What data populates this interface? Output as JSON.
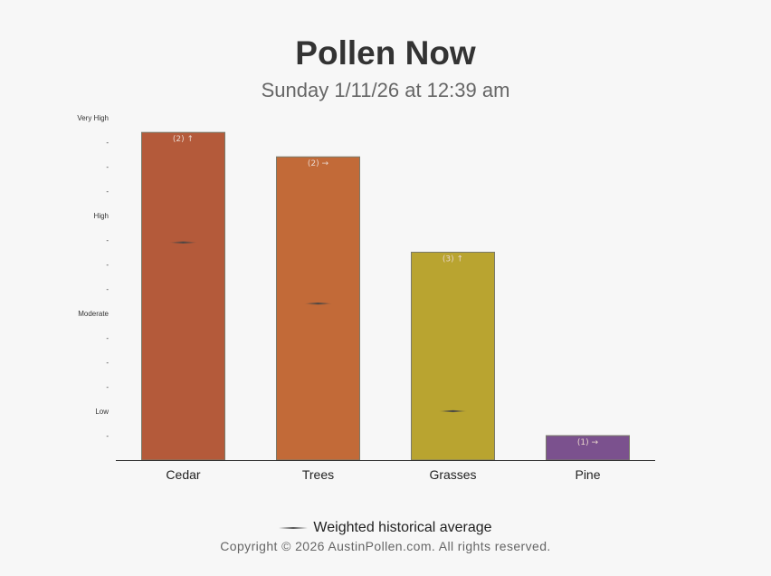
{
  "header": {
    "title": "Pollen Now",
    "subtitle": "Sunday 1/11/26 at 12:39 am"
  },
  "legend": {
    "label": "Weighted historical average"
  },
  "footer": {
    "copyright": "Copyright © 2026 AustinPollen.com.  All rights reserved."
  },
  "colors": {
    "cedar": "#b45a3a",
    "trees": "#c26a38",
    "grasses": "#b9a430",
    "pine": "#7b518e",
    "axis": "#333333",
    "avg_line": "#555555"
  },
  "chart_data": {
    "type": "bar",
    "title": "Pollen Now",
    "subtitle": "Sunday 1/11/26 at 12:39 am",
    "categories": [
      "Cedar",
      "Trees",
      "Grasses",
      "Pine"
    ],
    "values": [
      13.4,
      12.4,
      8.5,
      1.0
    ],
    "bar_labels": [
      "(2) ↑",
      "(2) →",
      "(3) ↑",
      "(1) →"
    ],
    "historical_average": [
      8.9,
      6.4,
      2.0,
      null
    ],
    "y_ticks": [
      {
        "value": 1,
        "label": "-"
      },
      {
        "value": 2,
        "label": "Low"
      },
      {
        "value": 3,
        "label": "-"
      },
      {
        "value": 4,
        "label": "-"
      },
      {
        "value": 5,
        "label": "-"
      },
      {
        "value": 6,
        "label": "Moderate"
      },
      {
        "value": 7,
        "label": "-"
      },
      {
        "value": 8,
        "label": "-"
      },
      {
        "value": 9,
        "label": "-"
      },
      {
        "value": 10,
        "label": "High"
      },
      {
        "value": 11,
        "label": "-"
      },
      {
        "value": 12,
        "label": "-"
      },
      {
        "value": 13,
        "label": "-"
      },
      {
        "value": 14,
        "label": "Very High"
      }
    ],
    "ylim": [
      0,
      14
    ],
    "legend": [
      "Weighted historical average"
    ],
    "legend_position": "bottom",
    "grid": false
  }
}
